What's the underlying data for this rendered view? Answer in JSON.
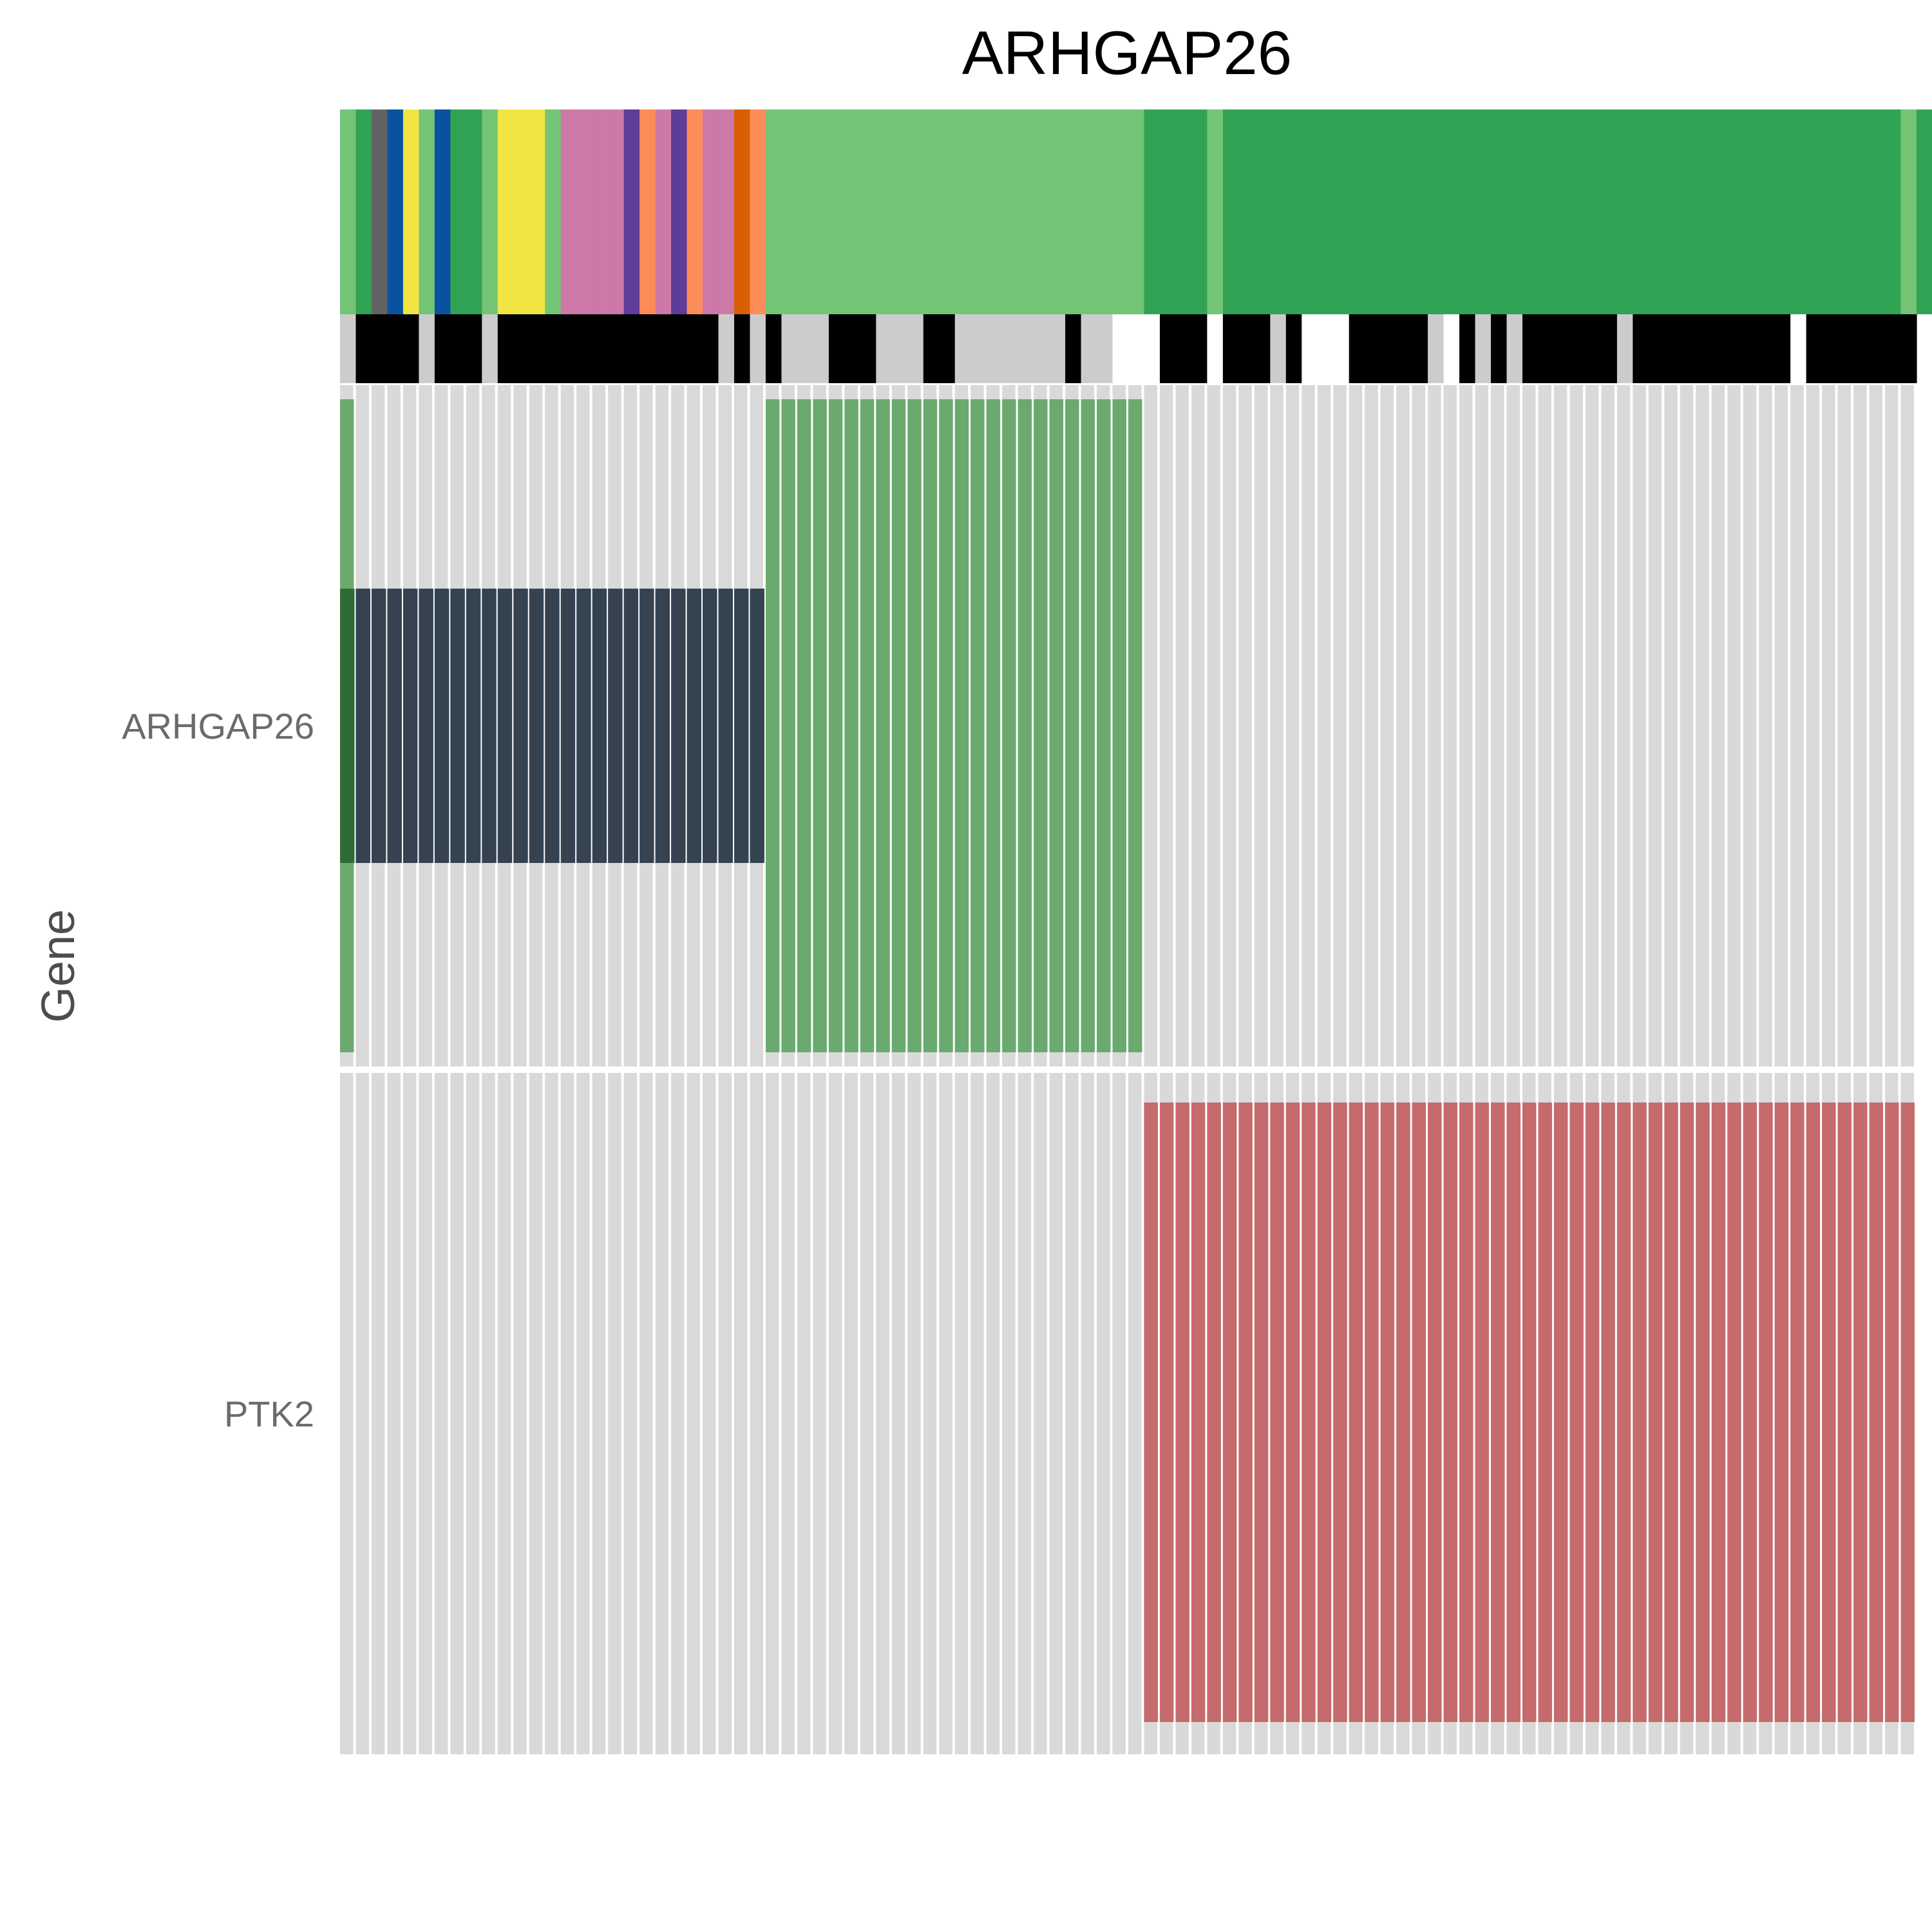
{
  "chart_data": {
    "type": "heatmap",
    "title": "ARHGAP26",
    "xlabel": "",
    "ylabel": "Gene",
    "genes": [
      "ARHGAP26",
      "PTK2"
    ],
    "n_samples": 100,
    "annotation_track_1": [
      "#74c476",
      "#31a354",
      "#636363",
      "#0a52a1",
      "#f1e443",
      "#74c476",
      "#0a52a1",
      "#31a354",
      "#31a354",
      "#74c476",
      "#f1e443",
      "#f1e443",
      "#f1e443",
      "#74c476",
      "#cc79a7",
      "#cc79a7",
      "#cc79a7",
      "#cc79a7",
      "#5e3c99",
      "#fc8d59",
      "#cc79a7",
      "#5e3c99",
      "#fc8d59",
      "#cc79a7",
      "#cc79a7",
      "#d95f02",
      "#fc8d59",
      "#74c476",
      "#74c476",
      "#74c476",
      "#74c476",
      "#74c476",
      "#74c476",
      "#74c476",
      "#74c476",
      "#74c476",
      "#74c476",
      "#74c476",
      "#74c476",
      "#74c476",
      "#74c476",
      "#74c476",
      "#74c476",
      "#74c476",
      "#74c476",
      "#74c476",
      "#74c476",
      "#74c476",
      "#74c476",
      "#74c476",
      "#74c476",
      "#31a354",
      "#31a354",
      "#31a354",
      "#31a354",
      "#74c476",
      "#31a354",
      "#31a354",
      "#31a354",
      "#31a354",
      "#31a354",
      "#31a354",
      "#31a354",
      "#31a354",
      "#31a354",
      "#31a354",
      "#31a354",
      "#31a354",
      "#31a354",
      "#31a354",
      "#31a354",
      "#31a354",
      "#31a354",
      "#31a354",
      "#31a354",
      "#31a354",
      "#31a354",
      "#31a354",
      "#31a354",
      "#31a354",
      "#31a354",
      "#31a354",
      "#31a354",
      "#31a354",
      "#31a354",
      "#31a354",
      "#31a354",
      "#31a354",
      "#31a354",
      "#31a354",
      "#31a354",
      "#31a354",
      "#31a354",
      "#31a354",
      "#31a354",
      "#31a354",
      "#31a354",
      "#31a354",
      "#31a354",
      "#74c476",
      "#31a354"
    ],
    "annotation_track_2": [
      "#cccccc",
      "#000000",
      "#000000",
      "#000000",
      "#000000",
      "#cccccc",
      "#000000",
      "#000000",
      "#000000",
      "#cccccc",
      "#000000",
      "#000000",
      "#000000",
      "#000000",
      "#000000",
      "#000000",
      "#000000",
      "#000000",
      "#000000",
      "#000000",
      "#000000",
      "#000000",
      "#000000",
      "#000000",
      "#cccccc",
      "#000000",
      "#cccccc",
      "#000000",
      "#cccccc",
      "#cccccc",
      "#cccccc",
      "#000000",
      "#000000",
      "#000000",
      "#cccccc",
      "#cccccc",
      "#cccccc",
      "#000000",
      "#000000",
      "#cccccc",
      "#cccccc",
      "#cccccc",
      "#cccccc",
      "#cccccc",
      "#cccccc",
      "#cccccc",
      "#000000",
      "#cccccc",
      "#cccccc",
      "#ffffff",
      "#ffffff",
      "#ffffff",
      "#000000",
      "#000000",
      "#000000",
      "#ffffff",
      "#000000",
      "#000000",
      "#000000",
      "#cccccc",
      "#000000",
      "#ffffff",
      "#ffffff",
      "#ffffff",
      "#000000",
      "#000000",
      "#000000",
      "#000000",
      "#000000",
      "#cccccc",
      "#ffffff",
      "#000000",
      "#cccccc",
      "#000000",
      "#cccccc",
      "#000000",
      "#000000",
      "#000000",
      "#000000",
      "#000000",
      "#000000",
      "#cccccc",
      "#000000",
      "#000000",
      "#000000",
      "#000000",
      "#000000",
      "#000000",
      "#000000",
      "#000000",
      "#000000",
      "#000000",
      "#ffffff",
      "#000000",
      "#000000",
      "#000000",
      "#000000",
      "#000000",
      "#000000",
      "#000000"
    ],
    "background_color": "#d9d9d9",
    "alteration_segments": [
      {
        "gene": "ARHGAP26",
        "start": 0,
        "end": 1,
        "color": "#6aaa6f",
        "span": "full"
      },
      {
        "gene": "ARHGAP26",
        "start": 0,
        "end": 1,
        "color": "#2e6b35",
        "span": "middle"
      },
      {
        "gene": "ARHGAP26",
        "start": 1,
        "end": 27,
        "color": "#34434f",
        "span": "middle"
      },
      {
        "gene": "ARHGAP26",
        "start": 27,
        "end": 51,
        "color": "#6aaa6f",
        "span": "full"
      },
      {
        "gene": "PTK2",
        "start": 51,
        "end": 100,
        "color": "#c56b6b",
        "span": "full"
      }
    ]
  }
}
